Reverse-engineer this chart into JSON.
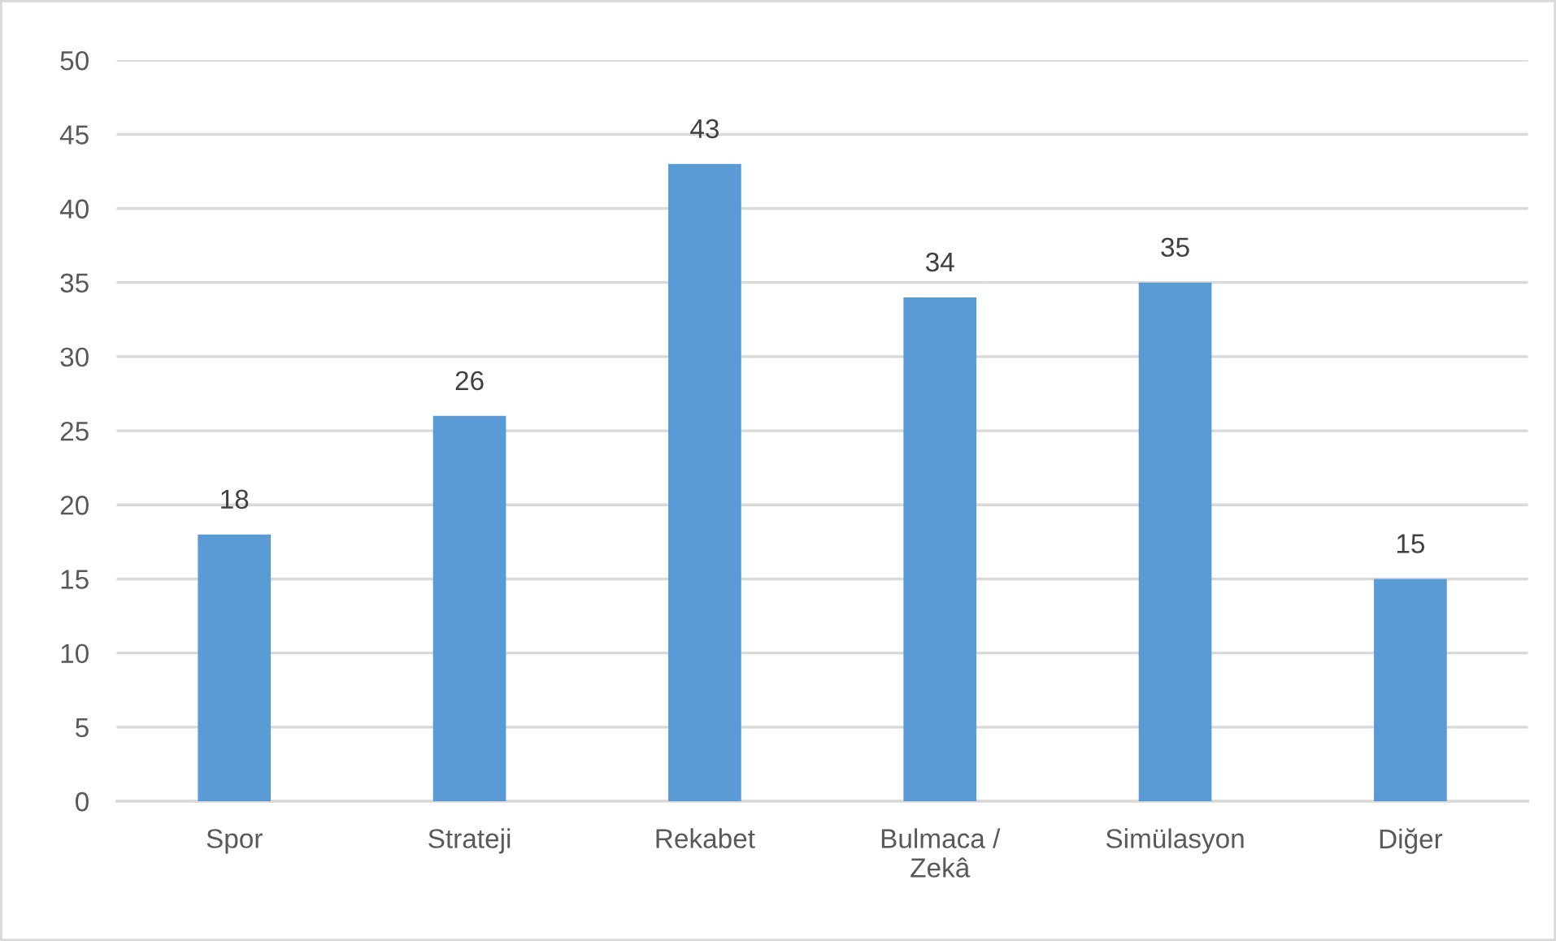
{
  "chart_data": {
    "type": "bar",
    "categories": [
      "Spor",
      "Strateji",
      "Rekabet",
      "Bulmaca / Zekâ",
      "Simülasyon",
      "Diğer"
    ],
    "values": [
      18,
      26,
      43,
      34,
      35,
      15
    ],
    "color": "#5b9bd5",
    "ylim": [
      0,
      50
    ],
    "yticks": [
      0,
      5,
      10,
      15,
      20,
      25,
      30,
      35,
      40,
      45,
      50
    ],
    "grid": "y",
    "data_labels": true
  }
}
